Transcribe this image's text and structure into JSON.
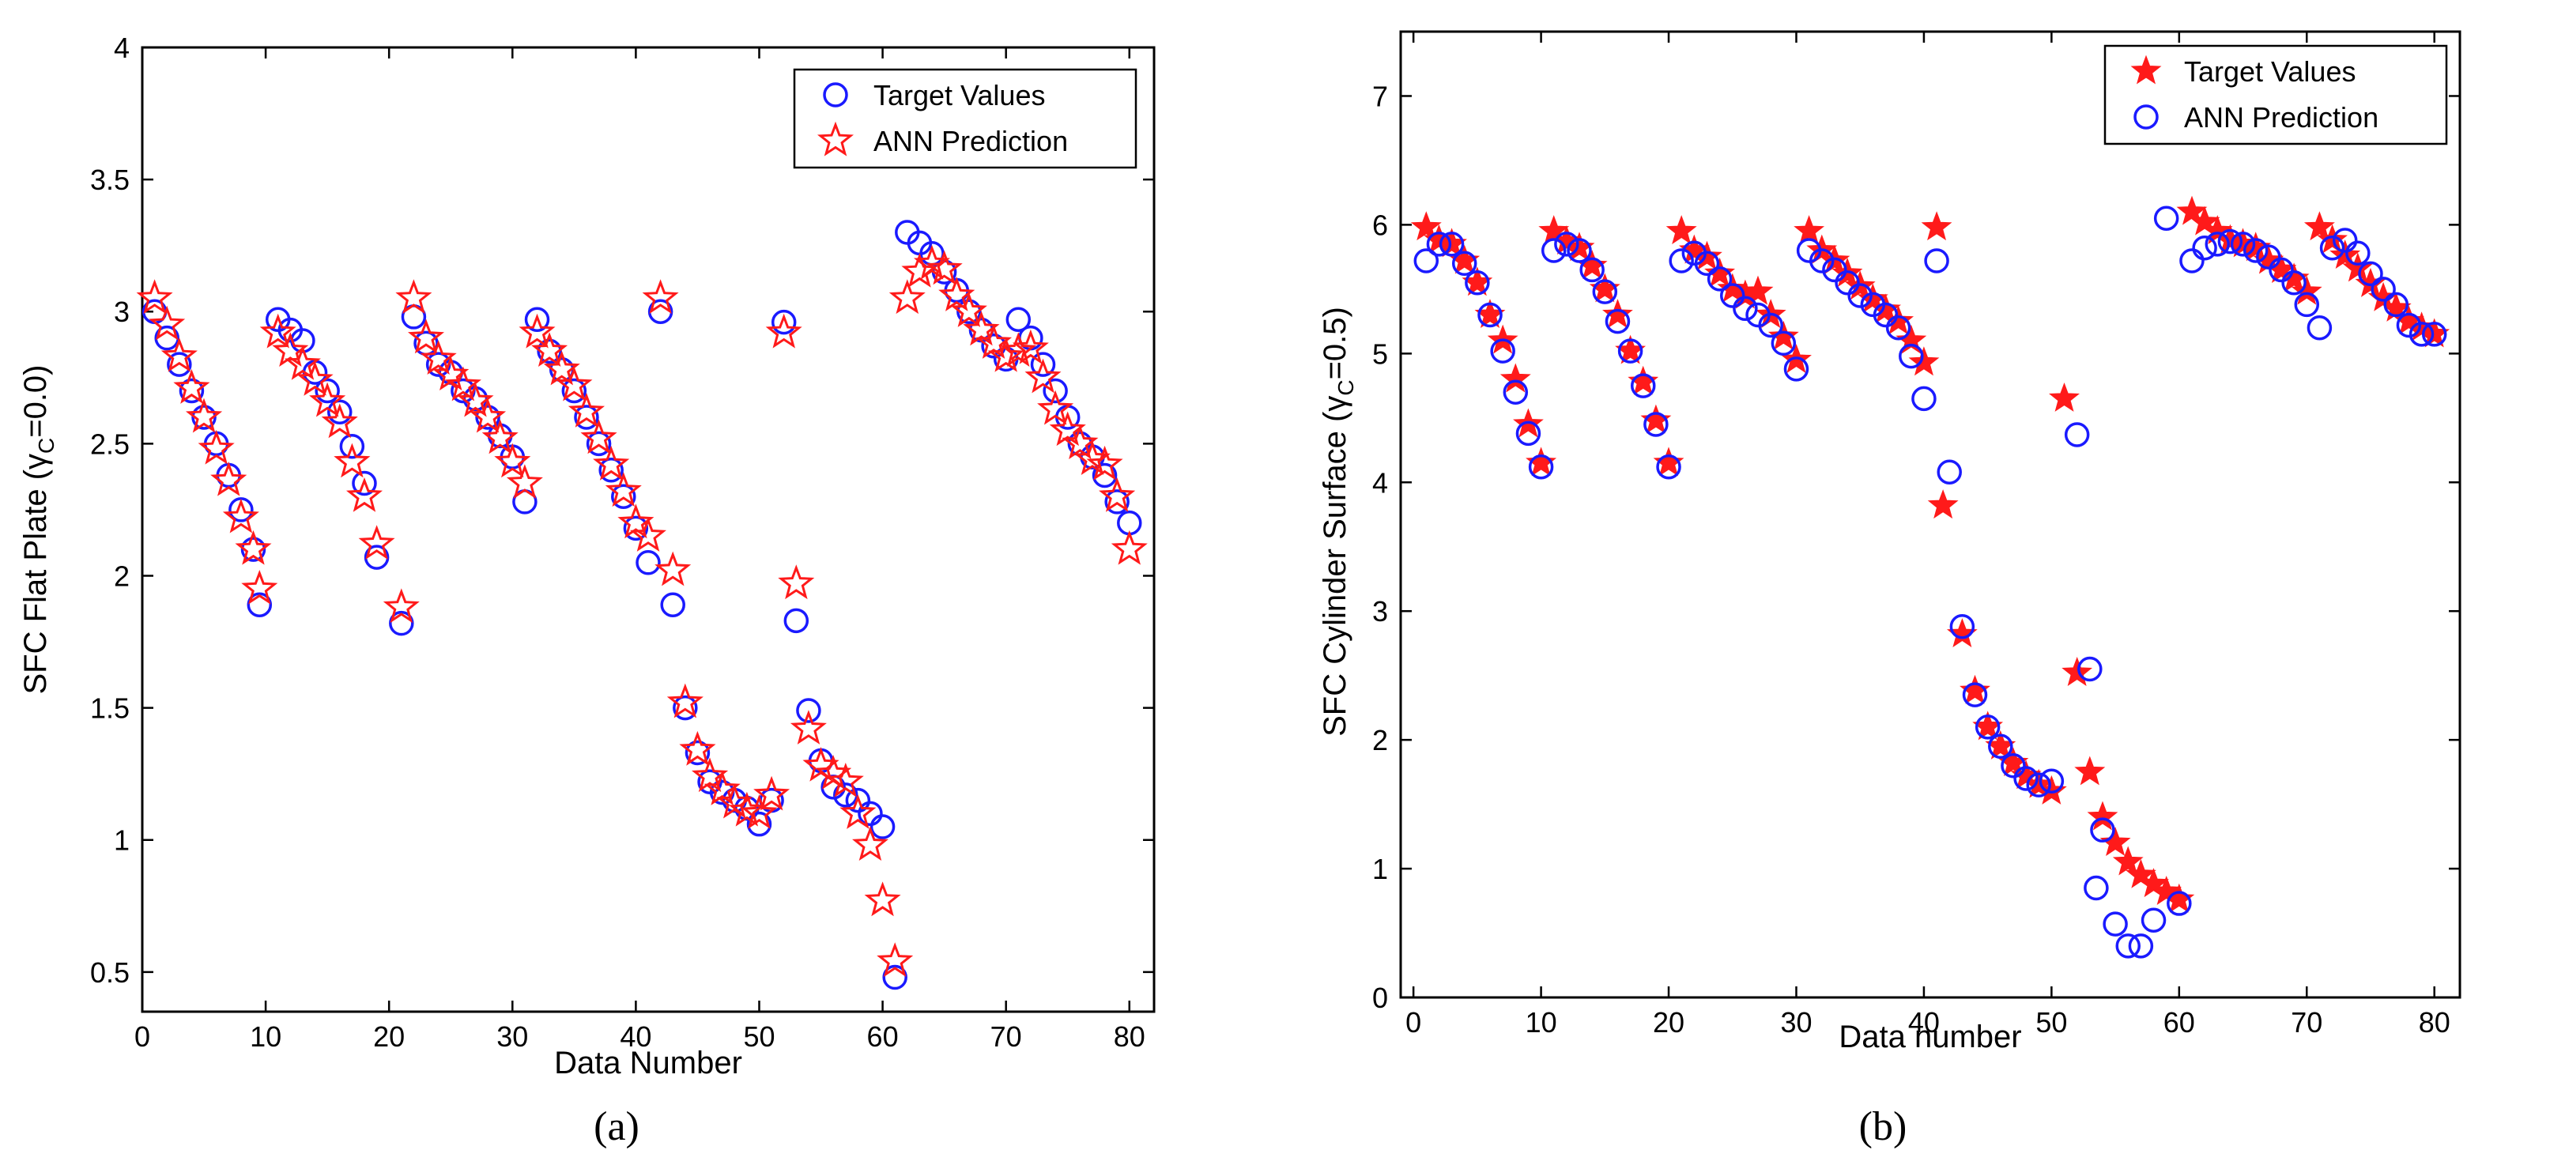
{
  "chart_data": [
    {
      "type": "scatter",
      "panel_label": "(a)",
      "xlabel": "Data Number",
      "ylabel": "SFC Flat Plate (",
      "ylabel_symbol": "γ",
      "ylabel_sub": "C",
      "ylabel_tail": "=0.0)",
      "xlim": [
        0,
        82
      ],
      "ylim": [
        0.35,
        4
      ],
      "xticks": [
        0,
        10,
        20,
        30,
        40,
        50,
        60,
        70,
        80
      ],
      "yticks": [
        0.5,
        1,
        1.5,
        2,
        2.5,
        3,
        3.5,
        4
      ],
      "ytick_labels": [
        "0.5",
        "1",
        "1.5",
        "2",
        "2.5",
        "3",
        "3.5",
        "4"
      ],
      "legend_position": "top-right",
      "colors": {
        "target": "#1a1aff",
        "prediction": "#ff1a1a"
      },
      "series": [
        {
          "name": "Target Values",
          "marker": "circle-open",
          "color": "#1a1aff",
          "x": [
            1,
            2,
            3,
            4,
            5,
            6,
            7,
            8,
            9,
            9.5,
            11,
            12,
            13,
            14,
            15,
            16,
            17,
            18,
            19,
            21,
            22,
            23,
            24,
            25,
            26,
            27,
            28,
            29,
            30,
            31,
            32,
            33,
            34,
            35,
            36,
            37,
            38,
            39,
            40,
            41,
            42,
            43,
            44,
            45,
            46,
            47,
            48,
            49,
            50,
            51,
            52,
            53,
            54,
            55,
            56,
            57,
            58,
            59,
            60,
            61,
            62,
            63,
            64,
            65,
            66,
            67,
            68,
            69,
            70,
            71,
            72,
            73,
            74,
            75,
            76,
            77,
            78,
            79,
            80
          ],
          "y": [
            3.0,
            2.9,
            2.8,
            2.7,
            2.6,
            2.5,
            2.38,
            2.25,
            2.1,
            1.89,
            2.97,
            2.93,
            2.89,
            2.77,
            2.7,
            2.62,
            2.49,
            2.35,
            2.07,
            1.82,
            2.98,
            2.88,
            2.8,
            2.77,
            2.7,
            2.67,
            2.6,
            2.53,
            2.45,
            2.28,
            2.97,
            2.85,
            2.78,
            2.7,
            2.6,
            2.5,
            2.4,
            2.3,
            2.18,
            2.05,
            3.0,
            1.89,
            1.5,
            1.33,
            1.22,
            1.18,
            1.15,
            1.12,
            1.06,
            1.15,
            2.96,
            1.83,
            1.49,
            1.3,
            1.2,
            1.17,
            1.15,
            1.1,
            1.05,
            0.48,
            3.3,
            3.26,
            3.22,
            3.15,
            3.08,
            3.0,
            2.93,
            2.87,
            2.82,
            2.97,
            2.9,
            2.8,
            2.7,
            2.6,
            2.5,
            2.45,
            2.38,
            2.28,
            2.2
          ]
        },
        {
          "name": "ANN Prediction",
          "marker": "star-open",
          "color": "#ff1a1a",
          "x": [
            1,
            2,
            3,
            4,
            5,
            6,
            7,
            8,
            9,
            9.5,
            11,
            12,
            13,
            14,
            15,
            16,
            17,
            18,
            19,
            21,
            22,
            23,
            24,
            25,
            26,
            27,
            28,
            29,
            30,
            31,
            32,
            33,
            34,
            35,
            36,
            37,
            38,
            39,
            40,
            41,
            42,
            43,
            44,
            45,
            46,
            47,
            48,
            49,
            50,
            51,
            52,
            53,
            54,
            55,
            56,
            57,
            58,
            59,
            60,
            61,
            62,
            63,
            64,
            65,
            66,
            67,
            68,
            69,
            70,
            71,
            72,
            73,
            74,
            75,
            76,
            77,
            78,
            79,
            80
          ],
          "y": [
            3.05,
            2.95,
            2.83,
            2.71,
            2.6,
            2.48,
            2.36,
            2.22,
            2.1,
            1.95,
            2.92,
            2.85,
            2.8,
            2.74,
            2.66,
            2.58,
            2.43,
            2.3,
            2.12,
            1.88,
            3.05,
            2.9,
            2.82,
            2.76,
            2.72,
            2.66,
            2.6,
            2.52,
            2.43,
            2.35,
            2.92,
            2.85,
            2.78,
            2.72,
            2.62,
            2.52,
            2.42,
            2.32,
            2.2,
            2.15,
            3.05,
            2.02,
            1.52,
            1.34,
            1.24,
            1.19,
            1.14,
            1.11,
            1.1,
            1.17,
            2.92,
            1.97,
            1.42,
            1.28,
            1.25,
            1.22,
            1.1,
            0.98,
            0.77,
            0.54,
            3.05,
            3.15,
            3.18,
            3.16,
            3.06,
            3.0,
            2.93,
            2.88,
            2.83,
            2.85,
            2.86,
            2.75,
            2.63,
            2.55,
            2.5,
            2.44,
            2.42,
            2.3,
            2.1
          ]
        }
      ]
    },
    {
      "type": "scatter",
      "panel_label": "(b)",
      "xlabel": "Data number",
      "ylabel": "SFC Cylinder Surface (",
      "ylabel_symbol": "γ",
      "ylabel_sub": "C",
      "ylabel_tail": "=0.5)",
      "xlim": [
        -1,
        82
      ],
      "ylim": [
        0,
        7.5
      ],
      "xticks": [
        0,
        10,
        20,
        30,
        40,
        50,
        60,
        70,
        80
      ],
      "yticks": [
        0,
        1,
        2,
        3,
        4,
        5,
        6,
        7
      ],
      "ytick_labels": [
        "0",
        "1",
        "2",
        "3",
        "4",
        "5",
        "6",
        "7"
      ],
      "legend_position": "top-right",
      "colors": {
        "target": "#ff1a1a",
        "prediction": "#1a1aff"
      },
      "series": [
        {
          "name": "Target Values",
          "marker": "star-filled",
          "color": "#ff1a1a",
          "x": [
            1,
            2,
            3,
            4,
            5,
            6,
            7,
            8,
            9,
            10,
            11,
            12,
            13,
            14,
            15,
            16,
            17,
            18,
            19,
            20,
            21,
            22,
            23,
            24,
            25,
            26,
            27,
            28,
            29,
            30,
            31,
            32,
            33,
            34,
            35,
            36,
            37,
            38,
            39,
            40,
            41,
            41.5,
            43,
            44,
            45,
            46,
            47,
            48,
            49,
            50,
            51,
            52,
            53,
            54,
            55,
            56,
            57,
            58,
            59,
            60,
            61,
            62,
            63,
            64,
            65,
            66,
            67,
            68,
            69,
            70,
            71,
            72,
            73,
            74,
            75,
            76,
            77,
            78,
            79,
            80
          ],
          "y": [
            5.98,
            5.88,
            5.85,
            5.72,
            5.55,
            5.3,
            5.1,
            4.8,
            4.45,
            4.15,
            5.95,
            5.87,
            5.82,
            5.68,
            5.5,
            5.3,
            5.02,
            4.78,
            4.48,
            4.15,
            5.95,
            5.8,
            5.75,
            5.62,
            5.5,
            5.45,
            5.48,
            5.3,
            5.13,
            4.95,
            5.95,
            5.8,
            5.72,
            5.62,
            5.52,
            5.42,
            5.34,
            5.25,
            5.1,
            4.93,
            5.98,
            3.82,
            2.82,
            2.38,
            2.1,
            1.95,
            1.82,
            1.72,
            1.65,
            1.6,
            4.65,
            2.52,
            1.75,
            1.4,
            1.2,
            1.05,
            0.95,
            0.88,
            0.82,
            0.76,
            6.1,
            6.02,
            5.95,
            5.88,
            5.85,
            5.82,
            5.72,
            5.65,
            5.58,
            5.48,
            5.98,
            5.88,
            5.76,
            5.66,
            5.54,
            5.43,
            5.35,
            5.25,
            5.2,
            5.15
          ]
        },
        {
          "name": "ANN Prediction",
          "marker": "circle-open",
          "color": "#1a1aff",
          "x": [
            1,
            2,
            3,
            4,
            5,
            6,
            7,
            8,
            9,
            10,
            11,
            12,
            13,
            14,
            15,
            16,
            17,
            18,
            19,
            20,
            21,
            22,
            23,
            24,
            25,
            26,
            27,
            28,
            29,
            30,
            31,
            32,
            33,
            34,
            35,
            36,
            37,
            38,
            39,
            40,
            41,
            42,
            43,
            44,
            45,
            46,
            47,
            48,
            49,
            50,
            52,
            53,
            53.5,
            54,
            55,
            56,
            57,
            58,
            59,
            60,
            61,
            62,
            63,
            64,
            65,
            66,
            67,
            68,
            69,
            70,
            71,
            72,
            73,
            74,
            75,
            76,
            77,
            78,
            79,
            80
          ],
          "y": [
            5.72,
            5.85,
            5.85,
            5.7,
            5.55,
            5.3,
            5.02,
            4.7,
            4.38,
            4.12,
            5.8,
            5.85,
            5.8,
            5.65,
            5.48,
            5.25,
            5.02,
            4.75,
            4.45,
            4.12,
            5.72,
            5.78,
            5.7,
            5.58,
            5.45,
            5.35,
            5.3,
            5.22,
            5.08,
            4.88,
            5.8,
            5.72,
            5.65,
            5.55,
            5.45,
            5.38,
            5.3,
            5.2,
            4.98,
            4.65,
            5.72,
            4.08,
            2.88,
            2.35,
            2.1,
            1.95,
            1.8,
            1.7,
            1.65,
            1.68,
            4.37,
            2.55,
            0.85,
            1.3,
            0.57,
            0.4,
            0.4,
            0.6,
            6.05,
            0.73,
            5.72,
            5.82,
            5.85,
            5.87,
            5.85,
            5.8,
            5.75,
            5.65,
            5.55,
            5.38,
            5.2,
            5.82,
            5.88,
            5.78,
            5.62,
            5.5,
            5.38,
            5.22,
            5.15,
            5.15
          ]
        }
      ]
    }
  ]
}
